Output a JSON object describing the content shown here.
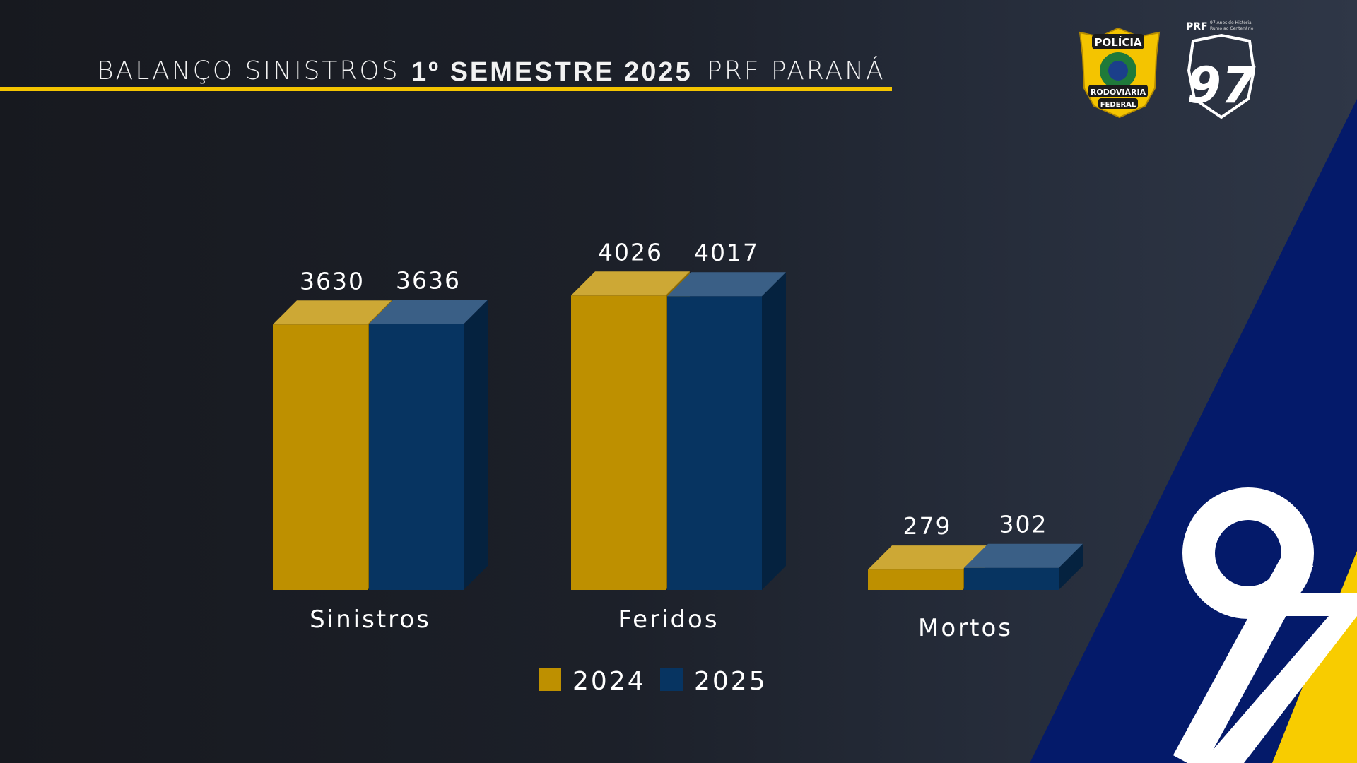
{
  "header": {
    "title_left": "BALANÇO SINISTROS",
    "title_mid": "1º SEMESTRE 2025",
    "title_right": "PRF PARANÁ"
  },
  "logos": {
    "badge_top": "POLÍCIA",
    "badge_mid": "RODOVIÁRIA",
    "badge_bottom": "FEDERAL",
    "anniv_brand": "PRF",
    "anniv_line1": "97 Anos de História",
    "anniv_line2": "Rumo ao Centenário",
    "anniv_number": "97"
  },
  "colors": {
    "series_2024": "#be9000",
    "series_2025": "#073461",
    "accent_yellow": "#f4c400",
    "accent_blue": "#041a6a"
  },
  "chart_data": {
    "type": "bar",
    "style": "3d-clustered",
    "categories": [
      "Sinistros",
      "Feridos",
      "Mortos"
    ],
    "series": [
      {
        "name": "2024",
        "values": [
          3630,
          4026,
          279
        ]
      },
      {
        "name": "2025",
        "values": [
          3636,
          4017,
          302
        ]
      }
    ],
    "legend": [
      "2024",
      "2025"
    ],
    "legend_position": "bottom"
  }
}
